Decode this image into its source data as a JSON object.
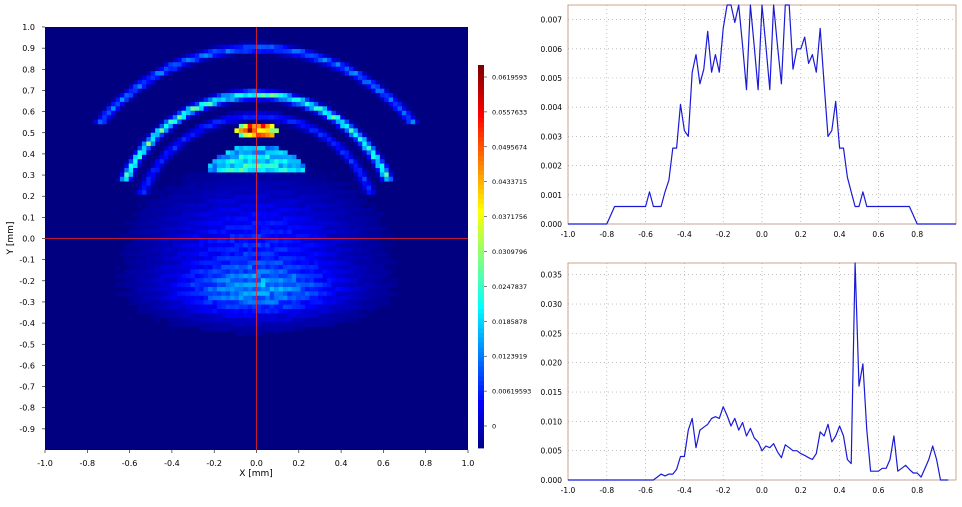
{
  "chart_data": [
    {
      "type": "heatmap",
      "xlabel": "X [mm]",
      "ylabel": "Y [mm]",
      "xlim": [
        -1.0,
        1.0
      ],
      "ylim": [
        -1.0,
        1.0
      ],
      "x_ticks": [
        "-1.0",
        "-0.8",
        "-0.6",
        "-0.4",
        "-0.2",
        "0.0",
        "0.2",
        "0.4",
        "0.6",
        "0.8",
        "1.0"
      ],
      "y_ticks": [
        "1.0",
        "0.9",
        "0.8",
        "0.7",
        "0.6",
        "0.5",
        "0.4",
        "0.3",
        "0.2",
        "0.1",
        "0.0",
        "-0.1",
        "-0.2",
        "-0.3",
        "-0.4",
        "-0.5",
        "-0.6",
        "-0.7",
        "-0.8",
        "-0.9"
      ],
      "crosshair": {
        "x": 0.0,
        "y": 0.0,
        "color": "#ff2020"
      },
      "colorbar": {
        "min": 0,
        "max": 0.0619593,
        "ticks": [
          "0.0619593",
          "0.0557633",
          "0.0495674",
          "0.0433715",
          "0.0371756",
          "0.0309796",
          "0.0247837",
          "0.0185878",
          "0.0123919",
          "0.00619593",
          "0"
        ]
      },
      "features": [
        {
          "kind": "ring",
          "cx": 0.0,
          "cy": -0.05,
          "r": 0.95,
          "y_min": 0.55,
          "value": 0.012
        },
        {
          "kind": "ring",
          "cx": 0.0,
          "cy": 0.0,
          "r": 0.68,
          "y_min": 0.28,
          "value": 0.022
        },
        {
          "kind": "ring",
          "cx": 0.0,
          "cy": 0.0,
          "r": 0.58,
          "y_min": 0.2,
          "value": 0.008
        },
        {
          "kind": "cap",
          "cx": 0.0,
          "cy": 0.31,
          "rx": 0.23,
          "ry": 0.13,
          "value": 0.02
        },
        {
          "kind": "blob",
          "cx": 0.0,
          "cy": -0.02,
          "rx": 0.55,
          "ry": 0.33,
          "value": 0.008
        },
        {
          "kind": "blob",
          "cx": 0.0,
          "cy": -0.25,
          "rx": 0.48,
          "ry": 0.15,
          "value": 0.011
        },
        {
          "kind": "hotspot",
          "cx": 0.0,
          "cy": 0.51,
          "rx": 0.1,
          "ry": 0.035,
          "value": 0.045
        }
      ]
    },
    {
      "type": "line",
      "xlim": [
        -1.0,
        1.0
      ],
      "ylim": [
        0,
        0.0075
      ],
      "x_ticks": [
        "-1.0",
        "-0.8",
        "-0.6",
        "-0.4",
        "-0.2",
        "0.0",
        "0.2",
        "0.4",
        "0.6",
        "0.8"
      ],
      "y_ticks": [
        "0.000",
        "0.001",
        "0.002",
        "0.003",
        "0.004",
        "0.005",
        "0.006",
        "0.007"
      ],
      "line_color": "#1a1ad6",
      "series": [
        {
          "x": [
            -1.0,
            -0.8,
            -0.78,
            -0.76,
            -0.7,
            -0.6,
            -0.58,
            -0.56,
            -0.52,
            -0.5,
            -0.48,
            -0.46,
            -0.44,
            -0.42,
            -0.4,
            -0.38,
            -0.36,
            -0.34,
            -0.32,
            -0.3,
            -0.28,
            -0.26,
            -0.24,
            -0.22,
            -0.2,
            -0.18,
            -0.16,
            -0.14,
            -0.12,
            -0.1,
            -0.08,
            -0.06,
            -0.04,
            -0.02,
            0.0,
            0.02,
            0.04,
            0.06,
            0.08,
            0.1,
            0.12,
            0.14,
            0.16,
            0.18,
            0.2,
            0.22,
            0.24,
            0.26,
            0.28,
            0.3,
            0.32,
            0.34,
            0.36,
            0.38,
            0.4,
            0.42,
            0.44,
            0.46,
            0.48,
            0.5,
            0.52,
            0.54,
            0.56,
            0.58,
            0.6,
            0.7,
            0.76,
            0.78,
            0.8,
            1.0
          ],
          "y": [
            0,
            0,
            0.0003,
            0.0006,
            0.0006,
            0.0006,
            0.0011,
            0.0006,
            0.0006,
            0.0011,
            0.0015,
            0.0026,
            0.0026,
            0.0041,
            0.0032,
            0.003,
            0.0052,
            0.0058,
            0.0048,
            0.0053,
            0.0066,
            0.0052,
            0.0058,
            0.0052,
            0.0067,
            0.0075,
            0.0075,
            0.0069,
            0.0075,
            0.0061,
            0.0046,
            0.0075,
            0.0061,
            0.0046,
            0.0075,
            0.0061,
            0.0046,
            0.0075,
            0.0061,
            0.0048,
            0.0075,
            0.0075,
            0.0053,
            0.006,
            0.006,
            0.0064,
            0.0055,
            0.0058,
            0.0052,
            0.0067,
            0.0048,
            0.003,
            0.0032,
            0.0042,
            0.0026,
            0.0026,
            0.0016,
            0.0011,
            0.0006,
            0.0006,
            0.0011,
            0.0006,
            0.0006,
            0.0006,
            0.0006,
            0.0006,
            0.0006,
            0.0003,
            0,
            0
          ]
        }
      ]
    },
    {
      "type": "line",
      "xlim": [
        -1.0,
        1.0
      ],
      "ylim": [
        0,
        0.037
      ],
      "x_ticks": [
        "-1.0",
        "-0.8",
        "-0.6",
        "-0.4",
        "-0.2",
        "0.0",
        "0.2",
        "0.4",
        "0.6",
        "0.8"
      ],
      "y_ticks": [
        "0.000",
        "0.005",
        "0.010",
        "0.015",
        "0.020",
        "0.025",
        "0.030",
        "0.035"
      ],
      "line_color": "#1a1ad6",
      "series": [
        {
          "x": [
            -1.0,
            -0.56,
            -0.54,
            -0.52,
            -0.5,
            -0.48,
            -0.46,
            -0.44,
            -0.42,
            -0.4,
            -0.38,
            -0.36,
            -0.34,
            -0.32,
            -0.3,
            -0.28,
            -0.26,
            -0.24,
            -0.22,
            -0.2,
            -0.18,
            -0.16,
            -0.14,
            -0.12,
            -0.1,
            -0.08,
            -0.06,
            -0.04,
            -0.02,
            0.0,
            0.02,
            0.04,
            0.06,
            0.08,
            0.1,
            0.12,
            0.14,
            0.16,
            0.18,
            0.2,
            0.22,
            0.24,
            0.26,
            0.28,
            0.3,
            0.32,
            0.34,
            0.36,
            0.38,
            0.4,
            0.42,
            0.44,
            0.46,
            0.48,
            0.5,
            0.52,
            0.54,
            0.56,
            0.58,
            0.6,
            0.62,
            0.64,
            0.66,
            0.68,
            0.7,
            0.72,
            0.74,
            0.76,
            0.78,
            0.8,
            0.82,
            0.84,
            0.86,
            0.88,
            0.9,
            0.92,
            0.94,
            0.96
          ],
          "y": [
            0,
            0,
            0.0005,
            0.001,
            0.0007,
            0.001,
            0.001,
            0.0018,
            0.004,
            0.004,
            0.0085,
            0.0105,
            0.0055,
            0.0085,
            0.009,
            0.0095,
            0.0105,
            0.0108,
            0.0105,
            0.0125,
            0.011,
            0.0092,
            0.0105,
            0.0085,
            0.0098,
            0.0075,
            0.0088,
            0.0072,
            0.0065,
            0.005,
            0.0058,
            0.0055,
            0.0062,
            0.0048,
            0.0038,
            0.006,
            0.0055,
            0.005,
            0.005,
            0.0045,
            0.0042,
            0.0038,
            0.0035,
            0.0045,
            0.0082,
            0.0075,
            0.0095,
            0.0065,
            0.0075,
            0.0092,
            0.0075,
            0.0035,
            0.0028,
            0.037,
            0.016,
            0.0198,
            0.0085,
            0.0015,
            0.0015,
            0.0015,
            0.002,
            0.002,
            0.0035,
            0.0075,
            0.0015,
            0.002,
            0.0025,
            0.0018,
            0.0012,
            0.0012,
            0.0005,
            0.002,
            0.0035,
            0.0058,
            0.0035,
            0.0,
            0.0,
            0.0
          ]
        }
      ]
    }
  ]
}
